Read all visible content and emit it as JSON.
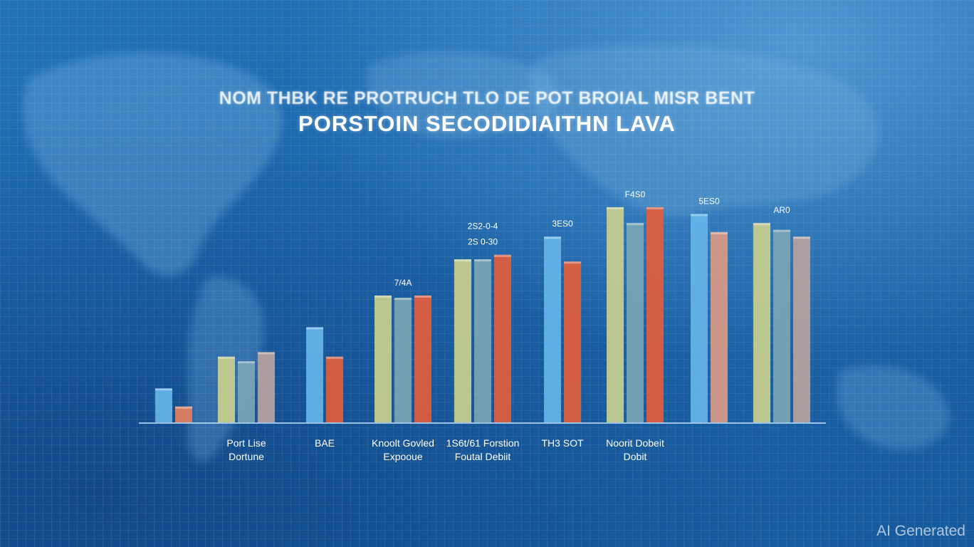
{
  "header": {
    "title_line_1": "NOM THBK RE PROTRUCH TLO DE POT BROIAL MISR BENT",
    "title_line_2": "PORSTOIN SECODIDIAITHN LAVA"
  },
  "watermark": "AI Generated",
  "chart_data": {
    "type": "bar",
    "title": "PORSTOIN SECODIDIAITHN LAVA",
    "xlabel": "",
    "ylabel": "",
    "ylim": [
      0,
      100
    ],
    "grid": true,
    "legend": "none",
    "groups": [
      {
        "label": "",
        "bars": [
          {
            "color": "#67b4e8",
            "value": 15
          },
          {
            "color": "#e2805f",
            "value": 7
          }
        ]
      },
      {
        "label": "Port Lise Dortune",
        "bars": [
          {
            "color": "#c9cf8e",
            "value": 29
          },
          {
            "color": "#7ba6b4",
            "value": 27
          },
          {
            "color": "#b8a3a0",
            "value": 31
          }
        ]
      },
      {
        "label": "BAE",
        "bars": [
          {
            "color": "#67b4e8",
            "value": 42
          },
          {
            "color": "#e25d3b",
            "value": 29
          }
        ]
      },
      {
        "label": "Knoolt Govled Expooue",
        "bars": [
          {
            "color": "#c9cf8e",
            "value": 56
          },
          {
            "color": "#7ba6b4",
            "value": 55
          },
          {
            "color": "#e25d3b",
            "value": 56
          }
        ]
      },
      {
        "label": "1S6t/61 Forstion Foutal Debiit",
        "bars": [
          {
            "color": "#c9cf8e",
            "value": 72
          },
          {
            "color": "#7ba6b4",
            "value": 72
          },
          {
            "color": "#e25d3b",
            "value": 74
          }
        ]
      },
      {
        "label": "TH3 SOT",
        "bars": [
          {
            "color": "#67b4e8",
            "value": 82
          },
          {
            "color": "#e25d3b",
            "value": 71
          }
        ]
      },
      {
        "label": "Noorit Dobeit Dobit",
        "bars": [
          {
            "color": "#c9cf8e",
            "value": 95
          },
          {
            "color": "#7ba6b4",
            "value": 88
          },
          {
            "color": "#e25d3b",
            "value": 95
          }
        ]
      },
      {
        "label": "",
        "bars": [
          {
            "color": "#67b4e8",
            "value": 92
          },
          {
            "color": "#d99a86",
            "value": 84
          }
        ]
      },
      {
        "label": "",
        "bars": [
          {
            "color": "#c9cf8e",
            "value": 88
          },
          {
            "color": "#7ba6b4",
            "value": 85
          },
          {
            "color": "#b8a3a0",
            "value": 82
          }
        ]
      }
    ],
    "data_labels": [
      {
        "group": 3,
        "text": "7/4A"
      },
      {
        "group": 4,
        "text": "2S2-0-4"
      },
      {
        "group": 4,
        "text": "2S 0-30"
      },
      {
        "group": 5,
        "text": "3ES0"
      },
      {
        "group": 6,
        "text": "F4S0"
      },
      {
        "group": 7,
        "text": "5ES0"
      },
      {
        "group": 8,
        "text": "AR0"
      }
    ]
  }
}
